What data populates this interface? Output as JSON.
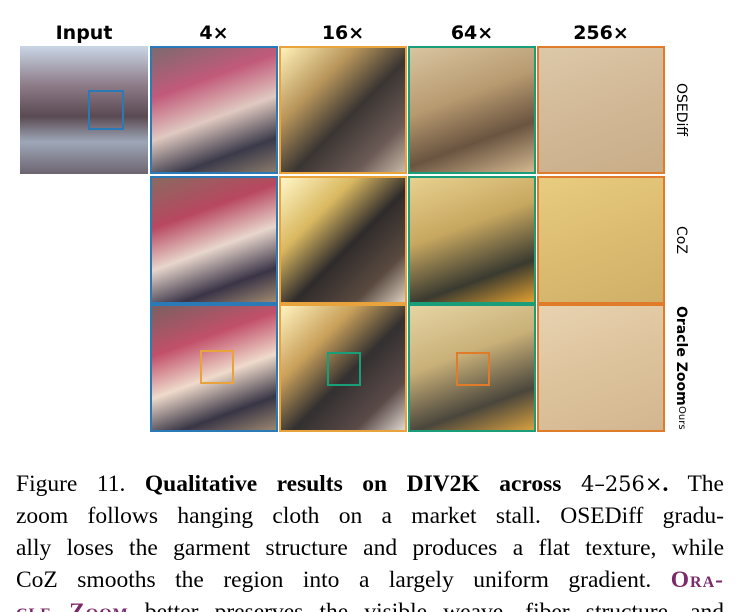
{
  "header": {
    "columns": [
      "Input",
      "4×",
      "16×",
      "64×",
      "256×"
    ]
  },
  "rows": [
    {
      "label": "OSEDiff"
    },
    {
      "label": "CoZ"
    },
    {
      "label": "Oracle Zoom",
      "subscript": "Ours"
    }
  ],
  "caption": {
    "lines": [
      [
        {
          "text": "Figure 11. ",
          "style": "plain"
        },
        {
          "text": "Qualitative results on DIV2K across ",
          "style": "bold"
        },
        {
          "text": "4–256×",
          "style": "math"
        },
        {
          "text": ".",
          "style": "bold"
        },
        {
          "text": " The",
          "style": "plain"
        }
      ],
      [
        {
          "text": "zoom follows hanging cloth on a market stall. OSEDiff gradu-",
          "style": "plain"
        }
      ],
      [
        {
          "text": "ally loses the garment structure and produces a flat texture, while",
          "style": "plain"
        }
      ],
      [
        {
          "text": "CoZ smooths the region into a largely uniform gradient. ",
          "style": "plain"
        },
        {
          "text": "Ora-",
          "style": "smallcaps"
        }
      ],
      [
        {
          "text": "cle Zoom",
          "style": "smallcaps"
        },
        {
          "text": " better preserves the visible weave, fiber structure, and",
          "style": "plain"
        }
      ]
    ]
  }
}
